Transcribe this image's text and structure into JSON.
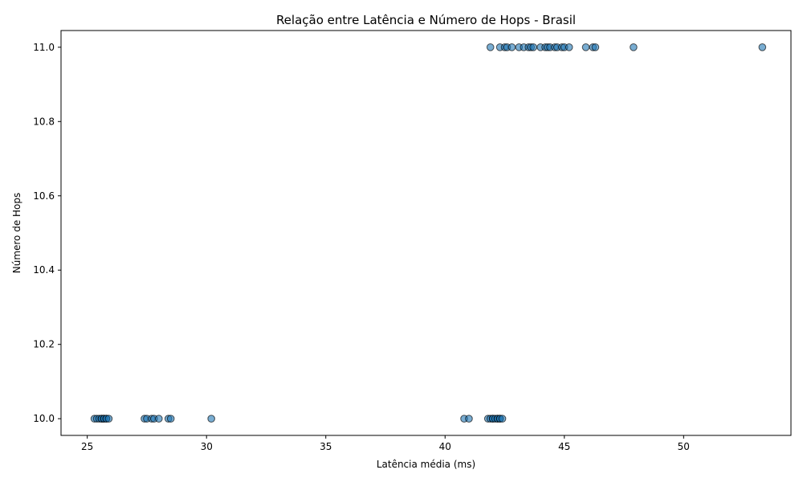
{
  "chart_data": {
    "type": "scatter",
    "title": "Relação entre Latência e Número de Hops - Brasil",
    "xlabel": "Latência média (ms)",
    "ylabel": "Número de Hops",
    "xlim": [
      23.9,
      54.5
    ],
    "ylim": [
      9.955,
      11.045
    ],
    "xticks": [
      25,
      30,
      35,
      40,
      45,
      50
    ],
    "yticks": [
      10.0,
      10.2,
      10.4,
      10.6,
      10.8,
      11.0
    ],
    "ytick_labels": [
      "10.0",
      "10.2",
      "10.4",
      "10.6",
      "10.8",
      "11.0"
    ],
    "grid": false,
    "marker_color": "#1f77b4",
    "marker_edge": "#000000",
    "series": [
      {
        "points": [
          {
            "x": 25.3,
            "y": 10
          },
          {
            "x": 25.4,
            "y": 10
          },
          {
            "x": 25.5,
            "y": 10
          },
          {
            "x": 25.6,
            "y": 10
          },
          {
            "x": 25.6,
            "y": 10
          },
          {
            "x": 25.7,
            "y": 10
          },
          {
            "x": 25.7,
            "y": 10
          },
          {
            "x": 25.8,
            "y": 10
          },
          {
            "x": 25.8,
            "y": 10
          },
          {
            "x": 25.9,
            "y": 10
          },
          {
            "x": 27.4,
            "y": 10
          },
          {
            "x": 27.5,
            "y": 10
          },
          {
            "x": 27.7,
            "y": 10
          },
          {
            "x": 27.8,
            "y": 10
          },
          {
            "x": 28.0,
            "y": 10
          },
          {
            "x": 28.4,
            "y": 10
          },
          {
            "x": 28.5,
            "y": 10
          },
          {
            "x": 30.2,
            "y": 10
          },
          {
            "x": 40.8,
            "y": 10
          },
          {
            "x": 41.0,
            "y": 10
          },
          {
            "x": 41.8,
            "y": 10
          },
          {
            "x": 41.9,
            "y": 10
          },
          {
            "x": 42.0,
            "y": 10
          },
          {
            "x": 42.0,
            "y": 10
          },
          {
            "x": 42.1,
            "y": 10
          },
          {
            "x": 42.2,
            "y": 10
          },
          {
            "x": 42.2,
            "y": 10
          },
          {
            "x": 42.3,
            "y": 10
          },
          {
            "x": 42.3,
            "y": 10
          },
          {
            "x": 42.4,
            "y": 10
          },
          {
            "x": 41.9,
            "y": 11
          },
          {
            "x": 42.3,
            "y": 11
          },
          {
            "x": 42.5,
            "y": 11
          },
          {
            "x": 42.6,
            "y": 11
          },
          {
            "x": 42.8,
            "y": 11
          },
          {
            "x": 43.1,
            "y": 11
          },
          {
            "x": 43.3,
            "y": 11
          },
          {
            "x": 43.5,
            "y": 11
          },
          {
            "x": 43.6,
            "y": 11
          },
          {
            "x": 43.7,
            "y": 11
          },
          {
            "x": 44.0,
            "y": 11
          },
          {
            "x": 44.2,
            "y": 11
          },
          {
            "x": 44.3,
            "y": 11
          },
          {
            "x": 44.4,
            "y": 11
          },
          {
            "x": 44.6,
            "y": 11
          },
          {
            "x": 44.7,
            "y": 11
          },
          {
            "x": 44.9,
            "y": 11
          },
          {
            "x": 45.0,
            "y": 11
          },
          {
            "x": 45.2,
            "y": 11
          },
          {
            "x": 45.9,
            "y": 11
          },
          {
            "x": 46.2,
            "y": 11
          },
          {
            "x": 46.3,
            "y": 11
          },
          {
            "x": 47.9,
            "y": 11
          },
          {
            "x": 53.3,
            "y": 11
          }
        ]
      }
    ]
  }
}
